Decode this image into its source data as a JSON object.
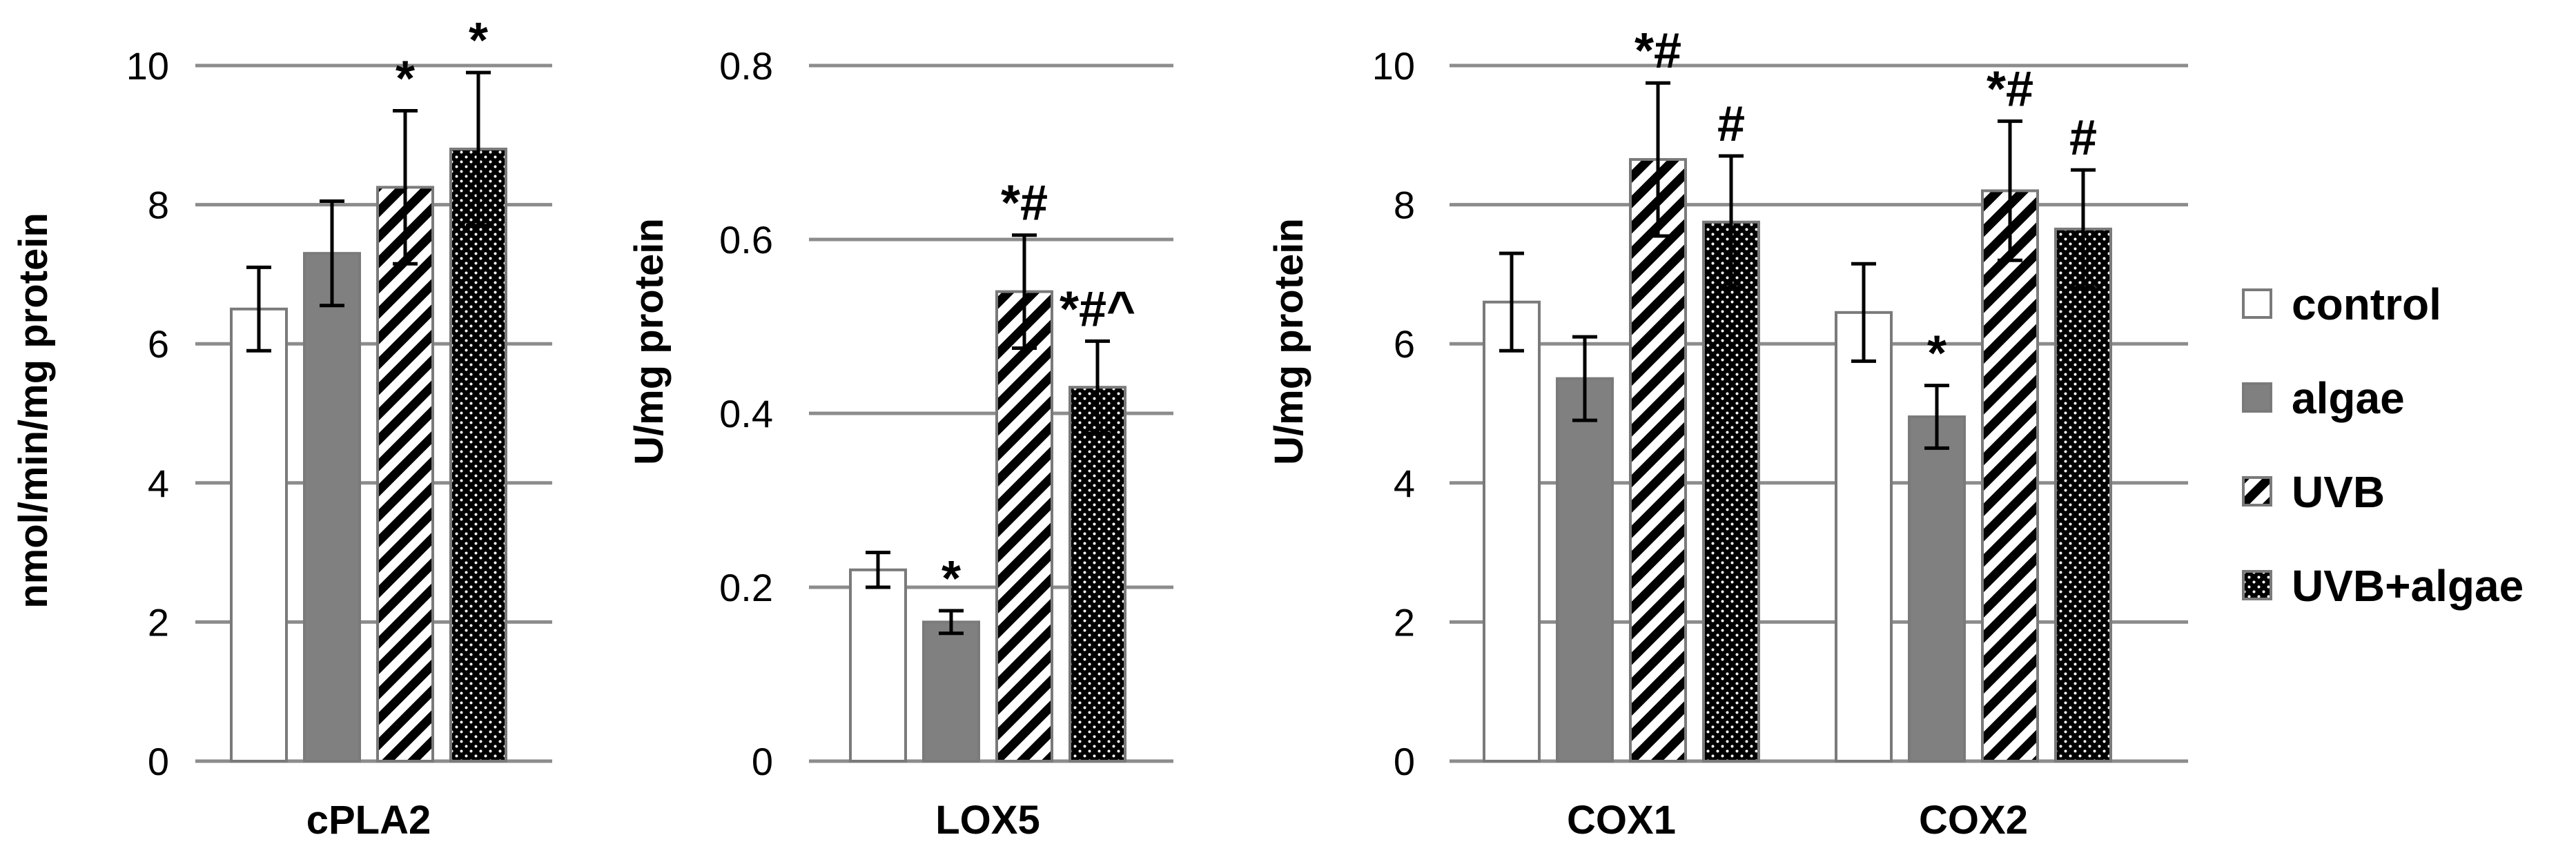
{
  "colors": {
    "control": "#ffffff",
    "algae": "#808080",
    "uvb_stripe": "#000000",
    "uvb_algae_fill": "#000000",
    "gridline": "#8c8c8c",
    "bar_border": "#7a7a7a",
    "error_bar": "#000000"
  },
  "legend": {
    "entries": [
      {
        "key": "control",
        "label": "control"
      },
      {
        "key": "algae",
        "label": "algae"
      },
      {
        "key": "uvb",
        "label": "UVB"
      },
      {
        "key": "uvb_algae",
        "label": "UVB+algae"
      }
    ]
  },
  "chart_data": [
    {
      "type": "bar",
      "title": "",
      "xlabel": "",
      "ylabel": "nmol/min/mg protein",
      "ylim": [
        0,
        10
      ],
      "yticks": [
        0,
        2,
        4,
        6,
        8,
        10
      ],
      "ytick_labels": [
        "0",
        "2",
        "4",
        "6",
        "8",
        "10"
      ],
      "grid": true,
      "categories": [
        "cPLA2"
      ],
      "series": [
        {
          "name": "control",
          "values": [
            6.5
          ],
          "errors": [
            0.6
          ],
          "annotations": [
            ""
          ]
        },
        {
          "name": "algae",
          "values": [
            7.3
          ],
          "errors": [
            0.75
          ],
          "annotations": [
            ""
          ]
        },
        {
          "name": "UVB",
          "values": [
            8.25
          ],
          "errors": [
            1.1
          ],
          "annotations": [
            "*"
          ]
        },
        {
          "name": "UVB+algae",
          "values": [
            8.8
          ],
          "errors": [
            1.1
          ],
          "annotations": [
            "*"
          ]
        }
      ]
    },
    {
      "type": "bar",
      "title": "",
      "xlabel": "",
      "ylabel": "U/mg protein",
      "ylim": [
        0,
        0.8
      ],
      "yticks": [
        0,
        0.2,
        0.4,
        0.6,
        0.8
      ],
      "ytick_labels": [
        "0",
        "0.2",
        "0.4",
        "0.6",
        "0.8"
      ],
      "grid": true,
      "categories": [
        "LOX5"
      ],
      "series": [
        {
          "name": "control",
          "values": [
            0.22
          ],
          "errors": [
            0.02
          ],
          "annotations": [
            ""
          ]
        },
        {
          "name": "algae",
          "values": [
            0.16
          ],
          "errors": [
            0.013
          ],
          "annotations": [
            "*"
          ]
        },
        {
          "name": "UVB",
          "values": [
            0.54
          ],
          "errors": [
            0.065
          ],
          "annotations": [
            "*#"
          ]
        },
        {
          "name": "UVB+algae",
          "values": [
            0.43
          ],
          "errors": [
            0.053
          ],
          "annotations": [
            "*#^"
          ]
        }
      ]
    },
    {
      "type": "bar",
      "title": "",
      "xlabel": "",
      "ylabel": "U/mg protein",
      "ylim": [
        0,
        10
      ],
      "yticks": [
        0,
        2,
        4,
        6,
        8,
        10
      ],
      "ytick_labels": [
        "0",
        "2",
        "4",
        "6",
        "8",
        "10"
      ],
      "grid": true,
      "categories": [
        "COX1",
        "COX2"
      ],
      "series": [
        {
          "name": "control",
          "values": [
            6.6,
            6.45
          ],
          "errors": [
            0.7,
            0.7
          ],
          "annotations": [
            "",
            ""
          ]
        },
        {
          "name": "algae",
          "values": [
            5.5,
            4.95
          ],
          "errors": [
            0.6,
            0.45
          ],
          "annotations": [
            "",
            "*"
          ]
        },
        {
          "name": "UVB",
          "values": [
            8.65,
            8.2
          ],
          "errors": [
            1.1,
            1.0
          ],
          "annotations": [
            "*#",
            "*#"
          ]
        },
        {
          "name": "UVB+algae",
          "values": [
            7.75,
            7.65
          ],
          "errors": [
            0.95,
            0.85
          ],
          "annotations": [
            "#",
            "#"
          ]
        }
      ]
    }
  ]
}
